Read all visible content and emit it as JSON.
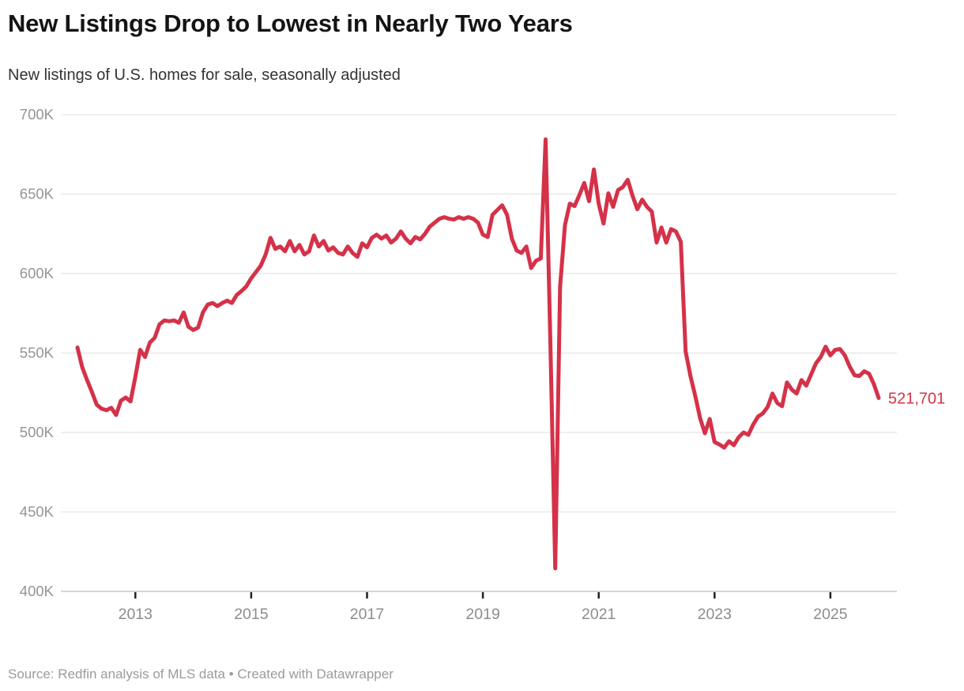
{
  "header": {
    "title": "New Listings Drop to Lowest in Nearly Two Years",
    "subtitle": "New listings of U.S. homes for sale, seasonally adjusted"
  },
  "footer": {
    "source": "Source: Redfin analysis of MLS data • Created with Datawrapper"
  },
  "chart_data": {
    "type": "line",
    "title": "New Listings Drop to Lowest in Nearly Two Years",
    "subtitle": "New listings of U.S. homes for sale, seasonally adjusted",
    "unit": "homes (seasonally adjusted annualized monthly new listings)",
    "frequency": "monthly",
    "x_start": "2012-01",
    "x_end": "2025-11",
    "ylim": [
      400000,
      700000
    ],
    "grid": "horizontal",
    "legend": "none",
    "line_color": "#d43249",
    "end_label": "521,701",
    "end_value": 521701,
    "y_ticks": [
      {
        "value": 700000,
        "label": "700K"
      },
      {
        "value": 650000,
        "label": "650K"
      },
      {
        "value": 600000,
        "label": "600K"
      },
      {
        "value": 550000,
        "label": "550K"
      },
      {
        "value": 500000,
        "label": "500K"
      },
      {
        "value": 450000,
        "label": "450K"
      },
      {
        "value": 400000,
        "label": "400K"
      }
    ],
    "x_ticks": [
      {
        "label": "2013",
        "month_index": 12
      },
      {
        "label": "2015",
        "month_index": 36
      },
      {
        "label": "2017",
        "month_index": 60
      },
      {
        "label": "2019",
        "month_index": 84
      },
      {
        "label": "2021",
        "month_index": 108
      },
      {
        "label": "2023",
        "month_index": 132
      },
      {
        "label": "2025",
        "month_index": 156
      }
    ],
    "style": {
      "gridline_color": "#e5e5e5",
      "axis_line_color": "#c9c9c9",
      "tick_mark_color": "#222222",
      "axis_label_color": "#959595",
      "year_label_color": "#8d8d8d"
    },
    "series": [
      {
        "name": "New listings of U.S. homes for sale, seasonally adjusted",
        "values": [
          553500,
          541000,
          533000,
          525500,
          517500,
          515000,
          514000,
          515500,
          511000,
          520000,
          522000,
          519500,
          535000,
          552000,
          547500,
          556500,
          559500,
          568000,
          570500,
          570000,
          570500,
          569000,
          575500,
          566500,
          564500,
          566000,
          575500,
          580500,
          581500,
          579500,
          581500,
          583000,
          581500,
          586500,
          589000,
          592000,
          597000,
          601000,
          605000,
          612000,
          622500,
          615500,
          617000,
          614000,
          620500,
          614000,
          618000,
          612000,
          614000,
          624000,
          617000,
          620500,
          614500,
          616500,
          613000,
          612000,
          617000,
          613000,
          610500,
          619000,
          616500,
          622500,
          624500,
          622000,
          624000,
          619500,
          622000,
          626500,
          622000,
          619000,
          623000,
          621500,
          625000,
          629500,
          632000,
          634500,
          635500,
          634500,
          634000,
          635500,
          634500,
          635500,
          634500,
          632000,
          624500,
          623000,
          637000,
          640000,
          643000,
          637000,
          622000,
          614500,
          613000,
          617000,
          603500,
          608000,
          609500,
          684500,
          555000,
          414500,
          591500,
          630500,
          644000,
          642500,
          649500,
          657000,
          645500,
          665500,
          644000,
          631500,
          650500,
          642000,
          652500,
          654500,
          659000,
          649000,
          640500,
          646500,
          642000,
          639000,
          619500,
          629000,
          619500,
          628000,
          626500,
          620000,
          551000,
          535500,
          523000,
          509000,
          499500,
          508500,
          494000,
          492500,
          490500,
          494500,
          492000,
          497000,
          500000,
          498500,
          505000,
          510000,
          512000,
          516000,
          524500,
          518500,
          516500,
          531500,
          527000,
          524500,
          533000,
          529500,
          536500,
          543500,
          547500,
          554000,
          548500,
          552000,
          552500,
          548500,
          541500,
          536000,
          535500,
          538500,
          537000,
          530500,
          521701
        ]
      }
    ]
  }
}
